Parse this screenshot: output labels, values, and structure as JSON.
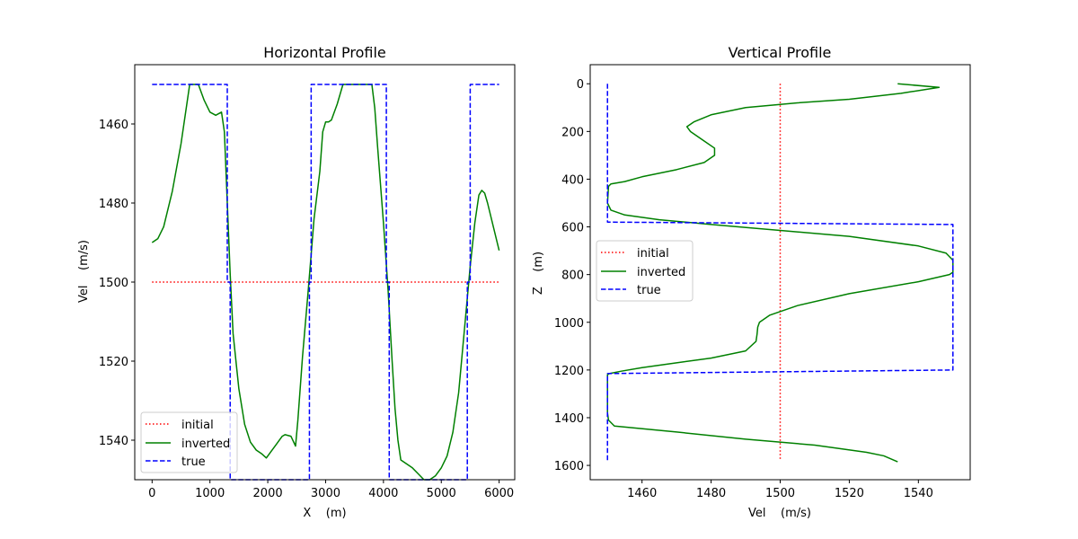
{
  "chart_data": [
    {
      "type": "line",
      "title": "Horizontal Profile",
      "xlabel": "X    (m)",
      "ylabel": "Vel    (m/s)",
      "xlim": [
        -300,
        6270
      ],
      "ylim": [
        1550,
        1445
      ],
      "y_inverted": true,
      "xticks": [
        0,
        1000,
        2000,
        3000,
        4000,
        5000,
        6000
      ],
      "xtick_labels": [
        "0",
        "1000",
        "2000",
        "3000",
        "4000",
        "5000",
        "6000"
      ],
      "yticks": [
        1460,
        1480,
        1500,
        1520,
        1540
      ],
      "ytick_labels": [
        "1460",
        "1480",
        "1500",
        "1520",
        "1540"
      ],
      "legend_location": "lower left",
      "grid": false,
      "series": [
        {
          "name": "initial",
          "color": "#ff0000",
          "dash": "dotted",
          "x": [
            0,
            6000
          ],
          "y": [
            1500,
            1500
          ]
        },
        {
          "name": "inverted",
          "color": "#008000",
          "dash": "solid",
          "x": [
            0,
            100,
            200,
            350,
            500,
            600,
            650,
            700,
            800,
            900,
            1000,
            1100,
            1200,
            1250,
            1300,
            1350,
            1400,
            1500,
            1600,
            1700,
            1800,
            1900,
            1975,
            2050,
            2150,
            2250,
            2300,
            2400,
            2480,
            2520,
            2600,
            2700,
            2800,
            2900,
            2950,
            3000,
            3050,
            3100,
            3200,
            3300,
            3500,
            3700,
            3800,
            3850,
            3900,
            4000,
            4080,
            4150,
            4200,
            4250,
            4300,
            4400,
            4500,
            4600,
            4700,
            4800,
            4900,
            5000,
            5100,
            5200,
            5300,
            5400,
            5500,
            5580,
            5650,
            5700,
            5750,
            5800,
            5900,
            6000
          ],
          "y": [
            1490,
            1489,
            1486,
            1477,
            1465,
            1455,
            1450,
            1450,
            1450,
            1454,
            1457,
            1457.8,
            1457,
            1462,
            1480,
            1498,
            1513,
            1527,
            1536,
            1540.5,
            1542.5,
            1543.5,
            1544.5,
            1543,
            1541,
            1539,
            1538.6,
            1539,
            1541.5,
            1535,
            1519,
            1502,
            1484,
            1472,
            1462,
            1459.5,
            1459.5,
            1459,
            1455,
            1450,
            1450,
            1450,
            1450,
            1456,
            1466,
            1485,
            1502,
            1520,
            1532,
            1540,
            1545,
            1546,
            1547,
            1548.5,
            1550,
            1550,
            1549,
            1547,
            1544,
            1538,
            1528,
            1512,
            1496,
            1485,
            1478,
            1476.8,
            1477.5,
            1480,
            1486,
            1492
          ]
        },
        {
          "name": "true",
          "color": "#0000ff",
          "dash": "dashed",
          "x": [
            0,
            1300,
            1300,
            1350,
            1350,
            2720,
            2720,
            2750,
            2750,
            4050,
            4050,
            4100,
            4100,
            5450,
            5450,
            5500,
            5500,
            6000
          ],
          "y": [
            1450,
            1450,
            1500,
            1500,
            1550,
            1550,
            1500,
            1500,
            1450,
            1450,
            1500,
            1500,
            1550,
            1550,
            1500,
            1500,
            1450,
            1450
          ]
        }
      ]
    },
    {
      "type": "line",
      "title": "Vertical Profile",
      "xlabel": "Vel    (m/s)",
      "ylabel": "Z    (m)",
      "xlim": [
        1445,
        1555
      ],
      "ylim": [
        1660,
        -80
      ],
      "y_inverted": true,
      "xticks": [
        1460,
        1480,
        1500,
        1520,
        1540
      ],
      "xtick_labels": [
        "1460",
        "1480",
        "1500",
        "1520",
        "1540"
      ],
      "yticks": [
        0,
        200,
        400,
        600,
        800,
        1000,
        1200,
        1400,
        1600
      ],
      "ytick_labels": [
        "0",
        "200",
        "400",
        "600",
        "800",
        "1000",
        "1200",
        "1400",
        "1600"
      ],
      "legend_location": "center left",
      "grid": false,
      "series": [
        {
          "name": "initial",
          "color": "#ff0000",
          "dash": "dotted",
          "x": [
            1500,
            1500
          ],
          "y": [
            0,
            1580
          ]
        },
        {
          "name": "inverted",
          "color": "#008000",
          "dash": "solid",
          "x": [
            1534,
            1546,
            1535,
            1520,
            1505,
            1490,
            1480,
            1475,
            1473,
            1474,
            1478,
            1481,
            1481,
            1478,
            1470,
            1460,
            1455,
            1451,
            1450.3,
            1450,
            1451,
            1455,
            1465,
            1480,
            1500,
            1520,
            1540,
            1548,
            1550,
            1550,
            1549,
            1540,
            1520,
            1505,
            1497,
            1494,
            1493.5,
            1493.3,
            1493,
            1490,
            1480,
            1470,
            1460,
            1454,
            1450.5,
            1450,
            1450,
            1450.3,
            1452,
            1470,
            1490,
            1510,
            1525,
            1530,
            1534
          ],
          "y": [
            0,
            15,
            40,
            65,
            80,
            100,
            130,
            160,
            180,
            200,
            240,
            270,
            300,
            330,
            360,
            390,
            410,
            420,
            430,
            500,
            530,
            550,
            570,
            590,
            615,
            640,
            680,
            710,
            740,
            790,
            800,
            830,
            880,
            930,
            970,
            1000,
            1020,
            1050,
            1080,
            1120,
            1150,
            1170,
            1190,
            1205,
            1215,
            1220,
            1380,
            1410,
            1435,
            1460,
            1490,
            1515,
            1545,
            1560,
            1585
          ]
        },
        {
          "name": "true",
          "color": "#0000ff",
          "dash": "dashed",
          "x": [
            1450,
            1450,
            1550,
            1550,
            1450,
            1450
          ],
          "y": [
            0,
            580,
            590,
            1200,
            1215,
            1580
          ]
        }
      ]
    }
  ]
}
